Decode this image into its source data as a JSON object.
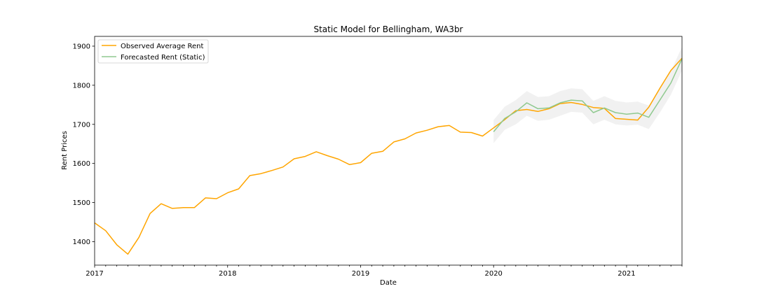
{
  "chart_data": {
    "type": "line",
    "title": "Static Model for Bellingham, WA3br",
    "xlabel": "Date",
    "ylabel": "Rent Prices",
    "xlim": [
      "2017-01",
      "2021-06"
    ],
    "ylim": [
      1340,
      1925
    ],
    "x_ticks": [
      "2017",
      "2018",
      "2019",
      "2020",
      "2021"
    ],
    "y_ticks": [
      1400,
      1500,
      1600,
      1700,
      1800,
      1900
    ],
    "grid": false,
    "legend_position": "top-left",
    "series": [
      {
        "name": "Observed Average Rent",
        "color": "#ffa500",
        "x": [
          "2017-01",
          "2017-02",
          "2017-03",
          "2017-04",
          "2017-05",
          "2017-06",
          "2017-07",
          "2017-08",
          "2017-09",
          "2017-10",
          "2017-11",
          "2017-12",
          "2018-01",
          "2018-02",
          "2018-03",
          "2018-04",
          "2018-05",
          "2018-06",
          "2018-07",
          "2018-08",
          "2018-09",
          "2018-10",
          "2018-11",
          "2018-12",
          "2019-01",
          "2019-02",
          "2019-03",
          "2019-04",
          "2019-05",
          "2019-06",
          "2019-07",
          "2019-08",
          "2019-09",
          "2019-10",
          "2019-11",
          "2019-12",
          "2020-01",
          "2020-02",
          "2020-03",
          "2020-04",
          "2020-05",
          "2020-06",
          "2020-07",
          "2020-08",
          "2020-09",
          "2020-10",
          "2020-11",
          "2020-12",
          "2021-01",
          "2021-02",
          "2021-03",
          "2021-04",
          "2021-05",
          "2021-06"
        ],
        "values": [
          1448,
          1428,
          1392,
          1368,
          1411,
          1472,
          1497,
          1485,
          1487,
          1487,
          1512,
          1510,
          1525,
          1535,
          1569,
          1574,
          1582,
          1591,
          1612,
          1618,
          1630,
          1620,
          1611,
          1597,
          1602,
          1626,
          1631,
          1655,
          1663,
          1678,
          1685,
          1694,
          1697,
          1680,
          1679,
          1670,
          1691,
          1712,
          1735,
          1738,
          1733,
          1740,
          1753,
          1756,
          1751,
          1743,
          1741,
          1715,
          1713,
          1711,
          1744,
          1792,
          1838,
          1869
        ]
      },
      {
        "name": "Forecasted Rent (Static)",
        "color": "#8fc98f",
        "x": [
          "2020-01",
          "2020-02",
          "2020-03",
          "2020-04",
          "2020-05",
          "2020-06",
          "2020-07",
          "2020-08",
          "2020-09",
          "2020-10",
          "2020-11",
          "2020-12",
          "2021-01",
          "2021-02",
          "2021-03",
          "2021-04",
          "2021-05",
          "2021-06"
        ],
        "values": [
          1681,
          1715,
          1732,
          1755,
          1740,
          1742,
          1755,
          1762,
          1760,
          1730,
          1742,
          1730,
          1726,
          1729,
          1718,
          1762,
          1806,
          1868
        ],
        "ci_lower": [
          1652,
          1686,
          1700,
          1722,
          1709,
          1712,
          1722,
          1732,
          1730,
          1700,
          1712,
          1700,
          1697,
          1699,
          1688,
          1730,
          1776,
          1838
        ],
        "ci_upper": [
          1711,
          1745,
          1762,
          1785,
          1770,
          1772,
          1785,
          1792,
          1790,
          1760,
          1772,
          1760,
          1756,
          1758,
          1748,
          1790,
          1836,
          1898
        ],
        "ci_color": "#d0d0d0"
      }
    ]
  }
}
